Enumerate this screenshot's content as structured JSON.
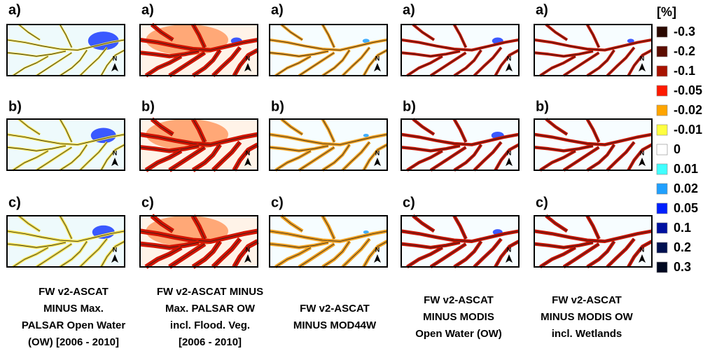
{
  "row_labels": [
    "a)",
    "b)",
    "c)"
  ],
  "north_label": "N",
  "columns": [
    {
      "caption": [
        "FW v2-ASCAT",
        "MINUS Max.",
        "PALSAR Open Water",
        "(OW) [2006 - 2010]"
      ]
    },
    {
      "caption": [
        "FW v2-ASCAT MINUS",
        "Max. PALSAR OW",
        "incl. Flood. Veg.",
        "[2006 - 2010]"
      ]
    },
    {
      "caption": [
        "FW v2-ASCAT",
        "MINUS MOD44W"
      ]
    },
    {
      "caption": [
        "FW v2-ASCAT",
        "MINUS MODIS",
        "Open Water (OW)"
      ]
    },
    {
      "caption": [
        "FW v2-ASCAT",
        "MINUS MODIS OW",
        "incl. Wetlands"
      ]
    }
  ],
  "legend": {
    "title": "[%]",
    "items": [
      {
        "label": "-0.3",
        "color": "#2a0800"
      },
      {
        "label": "-0.2",
        "color": "#5c0c00"
      },
      {
        "label": "-0.1",
        "color": "#a81200"
      },
      {
        "label": "-0.05",
        "color": "#ff1a00"
      },
      {
        "label": "-0.02",
        "color": "#ffa500"
      },
      {
        "label": "-0.01",
        "color": "#ffff40"
      },
      {
        "label": "0",
        "color": "#ffffff"
      },
      {
        "label": "0.01",
        "color": "#40ffff"
      },
      {
        "label": "0.02",
        "color": "#20a0ff"
      },
      {
        "label": "0.05",
        "color": "#0020ff"
      },
      {
        "label": "0.1",
        "color": "#0010a0"
      },
      {
        "label": "0.2",
        "color": "#001050"
      },
      {
        "label": "0.3",
        "color": "#000820"
      }
    ]
  }
}
